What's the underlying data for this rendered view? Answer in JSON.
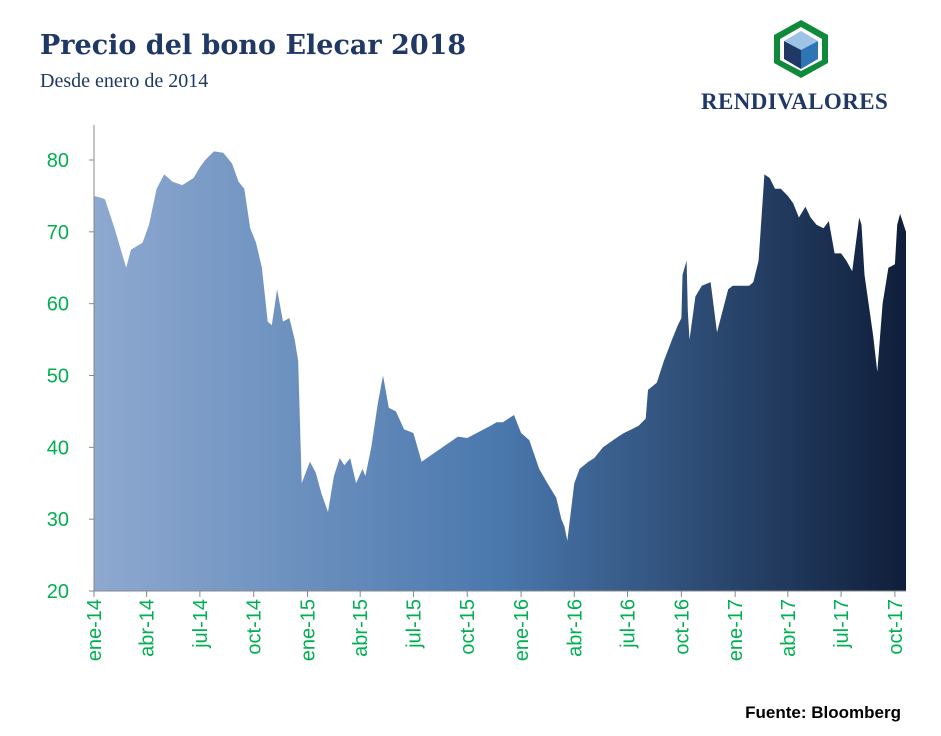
{
  "header": {
    "title": "Precio del bono Elecar 2018",
    "subtitle": "Desde enero de 2014"
  },
  "logo": {
    "text": "RENDIVALORES",
    "icon": "cube-logo-icon",
    "colors": {
      "ring": "#0f8a3a",
      "top": "#9dc3e6",
      "left": "#1f3864",
      "right": "#2e75b6"
    }
  },
  "source": "Fuente: Bloomberg",
  "colors": {
    "tick_label": "#00b050",
    "axis": "#888888",
    "area_start": "#8ea9d0",
    "area_mid": "#4a78ad",
    "area_end": "#0f1e3a"
  },
  "chart_data": {
    "type": "area",
    "title": "Precio del bono Elecar 2018",
    "subtitle": "Desde enero de 2014",
    "ylim": [
      20,
      85
    ],
    "yticks": [
      20,
      30,
      40,
      50,
      60,
      70,
      80
    ],
    "xlim": [
      "2014-01-01",
      "2017-10-20"
    ],
    "xtick_labels": [
      "ene-14",
      "abr-14",
      "jul-14",
      "oct-14",
      "ene-15",
      "abr-15",
      "jul-15",
      "oct-15",
      "ene-16",
      "abr-16",
      "jul-16",
      "oct-16",
      "ene-17",
      "abr-17",
      "jul-17",
      "oct-17"
    ],
    "xtick_dates": [
      "2014-01-01",
      "2014-04-01",
      "2014-07-01",
      "2014-10-01",
      "2015-01-01",
      "2015-04-01",
      "2015-07-01",
      "2015-10-01",
      "2016-01-01",
      "2016-04-01",
      "2016-07-01",
      "2016-10-01",
      "2017-01-01",
      "2017-04-01",
      "2017-07-01",
      "2017-10-01"
    ],
    "grid": false,
    "legend": "none",
    "series": [
      {
        "x": [
          "2014-01-01",
          "2014-01-15",
          "2014-01-20",
          "2014-02-05",
          "2014-02-25",
          "2014-03-05",
          "2014-03-25",
          "2014-04-05",
          "2014-04-18",
          "2014-05-01",
          "2014-05-15",
          "2014-06-01",
          "2014-06-20",
          "2014-07-01",
          "2014-07-10",
          "2014-07-25",
          "2014-08-10",
          "2014-08-25",
          "2014-09-05",
          "2014-09-15",
          "2014-09-25",
          "2014-10-05",
          "2014-10-15",
          "2014-10-25",
          "2014-11-01",
          "2014-11-10",
          "2014-11-20",
          "2014-12-01",
          "2014-12-10",
          "2014-12-16",
          "2014-12-22",
          "2015-01-05",
          "2015-01-15",
          "2015-01-25",
          "2015-02-05",
          "2015-02-15",
          "2015-02-25",
          "2015-03-05",
          "2015-03-15",
          "2015-03-25",
          "2015-04-05",
          "2015-04-10",
          "2015-04-20",
          "2015-05-01",
          "2015-05-10",
          "2015-05-20",
          "2015-06-01",
          "2015-06-15",
          "2015-07-01",
          "2015-07-15",
          "2015-09-15",
          "2015-10-01",
          "2015-11-10",
          "2015-11-20",
          "2015-12-01",
          "2015-12-20",
          "2016-01-01",
          "2016-01-15",
          "2016-02-01",
          "2016-02-15",
          "2016-03-01",
          "2016-03-10",
          "2016-03-15",
          "2016-03-20",
          "2016-04-01",
          "2016-04-10",
          "2016-04-25",
          "2016-05-05",
          "2016-05-20",
          "2016-06-15",
          "2016-06-25",
          "2016-07-20",
          "2016-08-01",
          "2016-08-05",
          "2016-08-20",
          "2016-09-01",
          "2016-09-15",
          "2016-09-25",
          "2016-10-01",
          "2016-10-03",
          "2016-10-10",
          "2016-10-12",
          "2016-10-15",
          "2016-10-25",
          "2016-11-05",
          "2016-11-20",
          "2016-12-01",
          "2016-12-20",
          "2016-12-28",
          "2017-01-05",
          "2017-01-15",
          "2017-01-25",
          "2017-02-01",
          "2017-02-10",
          "2017-02-20",
          "2017-03-01",
          "2017-03-10",
          "2017-03-20",
          "2017-04-01",
          "2017-04-10",
          "2017-04-20",
          "2017-05-01",
          "2017-05-10",
          "2017-05-20",
          "2017-06-01",
          "2017-06-10",
          "2017-06-20",
          "2017-07-01",
          "2017-07-10",
          "2017-07-20",
          "2017-08-01",
          "2017-08-05",
          "2017-08-10",
          "2017-08-25",
          "2017-09-01",
          "2017-09-10",
          "2017-09-20",
          "2017-10-01",
          "2017-10-05",
          "2017-10-10",
          "2017-10-20"
        ],
        "y": [
          75,
          74.7,
          74.5,
          70.5,
          65,
          67.5,
          68.5,
          71,
          76,
          78,
          77,
          76.5,
          77.5,
          79,
          80,
          81.2,
          81,
          79.5,
          77,
          76,
          70.5,
          68.5,
          65,
          57.5,
          57,
          62,
          57.5,
          58,
          55,
          52,
          35,
          38,
          36.5,
          33.5,
          31,
          36,
          38.5,
          37.5,
          38.5,
          35,
          37,
          36,
          40,
          46,
          50,
          45.5,
          45,
          42.5,
          42,
          38,
          41.5,
          41.3,
          43,
          43.5,
          43.5,
          44.5,
          42,
          41,
          37,
          35,
          33,
          30,
          29,
          27,
          35,
          37,
          38,
          38.5,
          40,
          41.5,
          42,
          43,
          44,
          48,
          49,
          52,
          55,
          57,
          58,
          64,
          66,
          59,
          55,
          61,
          62.5,
          63,
          56,
          62,
          62.5,
          62.5,
          62.5,
          62.5,
          63,
          66,
          78,
          77.5,
          76,
          76,
          75,
          74,
          72,
          73.5,
          72,
          71,
          70.5,
          71.5,
          67,
          67,
          66,
          64.5,
          72,
          71,
          64,
          55.5,
          50.5,
          60,
          65,
          65.5,
          71,
          72.5,
          70
        ]
      }
    ]
  }
}
